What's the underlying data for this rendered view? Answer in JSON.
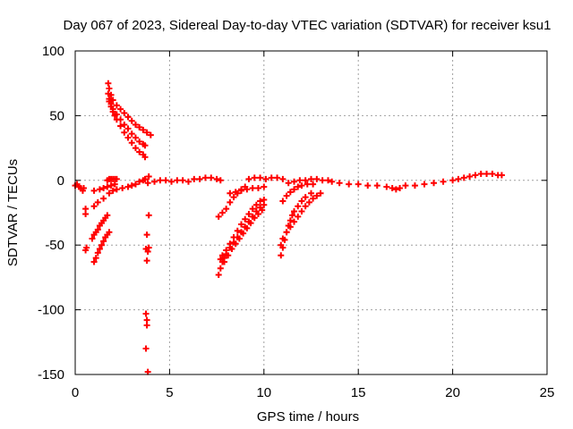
{
  "chart_data": {
    "type": "scatter",
    "title": "Day 067 of 2023, Sidereal Day-to-day VTEC variation (SDTVAR) for receiver ksu1",
    "xlabel": "GPS time / hours",
    "ylabel": "SDTVAR / TECUs",
    "xlim": [
      0,
      25
    ],
    "ylim": [
      -150,
      100
    ],
    "xticks": [
      "0",
      "5",
      "10",
      "15",
      "20",
      "25"
    ],
    "yticks": [
      "100",
      "50",
      "0",
      "-50",
      "-100",
      "-150"
    ],
    "grid": true,
    "marker": "+",
    "point_color": "#ff0000",
    "series": [
      {
        "name": "baseline-early",
        "points": [
          [
            0.0,
            -4
          ],
          [
            0.1,
            -3
          ],
          [
            0.2,
            -5
          ],
          [
            0.3,
            -6
          ],
          [
            0.4,
            -8
          ],
          [
            0.45,
            -6
          ]
        ]
      },
      {
        "name": "early-right",
        "points": [
          [
            1.0,
            -20
          ],
          [
            1.2,
            -17
          ],
          [
            1.5,
            -14
          ],
          [
            1.8,
            -10
          ],
          [
            2.0,
            -8
          ],
          [
            2.2,
            -7
          ],
          [
            2.5,
            -6
          ],
          [
            2.8,
            -5
          ],
          [
            3.0,
            -4
          ],
          [
            3.2,
            -3
          ],
          [
            3.4,
            -1
          ],
          [
            3.6,
            0
          ],
          [
            3.7,
            1
          ]
        ]
      },
      {
        "name": "early-band-lower",
        "points": [
          [
            1.0,
            -8
          ],
          [
            1.3,
            -7
          ],
          [
            1.5,
            -6
          ],
          [
            1.7,
            -5
          ],
          [
            1.9,
            -4
          ],
          [
            2.1,
            -3
          ]
        ]
      },
      {
        "name": "early-flat",
        "points": [
          [
            1.7,
            0
          ],
          [
            1.8,
            1
          ],
          [
            1.9,
            1
          ],
          [
            2.0,
            1
          ],
          [
            2.1,
            1
          ],
          [
            2.2,
            1
          ]
        ]
      },
      {
        "name": "early-rise-a",
        "points": [
          [
            0.9,
            -45
          ],
          [
            1.0,
            -42
          ],
          [
            1.1,
            -40
          ],
          [
            1.2,
            -38
          ],
          [
            1.3,
            -35
          ],
          [
            1.4,
            -33
          ],
          [
            1.5,
            -31
          ],
          [
            1.6,
            -29
          ],
          [
            1.7,
            -27
          ]
        ]
      },
      {
        "name": "early-rise-b",
        "points": [
          [
            1.0,
            -63
          ],
          [
            1.1,
            -60
          ],
          [
            1.2,
            -56
          ],
          [
            1.3,
            -53
          ],
          [
            1.4,
            -50
          ],
          [
            1.5,
            -47
          ],
          [
            1.6,
            -44
          ],
          [
            1.7,
            -42
          ],
          [
            1.8,
            -40
          ]
        ]
      },
      {
        "name": "early-isolated",
        "points": [
          [
            0.55,
            -54
          ],
          [
            0.6,
            -52
          ],
          [
            0.55,
            -22
          ],
          [
            0.55,
            -26
          ]
        ]
      },
      {
        "name": "arc-upper-1",
        "points": [
          [
            1.75,
            75
          ],
          [
            1.8,
            71
          ],
          [
            1.9,
            66
          ],
          [
            2.0,
            62
          ],
          [
            2.2,
            58
          ],
          [
            2.4,
            55
          ],
          [
            2.6,
            52
          ],
          [
            2.8,
            49
          ],
          [
            3.0,
            46
          ],
          [
            3.2,
            43
          ],
          [
            3.4,
            41
          ],
          [
            3.6,
            39
          ],
          [
            3.8,
            37
          ],
          [
            4.0,
            35
          ]
        ]
      },
      {
        "name": "arc-upper-2",
        "points": [
          [
            1.75,
            67
          ],
          [
            1.8,
            63
          ],
          [
            1.9,
            59
          ],
          [
            2.0,
            55
          ],
          [
            2.2,
            51
          ],
          [
            2.4,
            47
          ],
          [
            2.6,
            43
          ],
          [
            2.8,
            40
          ],
          [
            3.0,
            36
          ],
          [
            3.2,
            33
          ],
          [
            3.4,
            30
          ],
          [
            3.6,
            28
          ],
          [
            3.7,
            27
          ]
        ]
      },
      {
        "name": "arc-upper-3",
        "points": [
          [
            1.8,
            61
          ],
          [
            1.9,
            57
          ],
          [
            2.0,
            53
          ],
          [
            2.1,
            50
          ],
          [
            2.2,
            47
          ],
          [
            2.4,
            42
          ],
          [
            2.6,
            37
          ],
          [
            2.8,
            33
          ],
          [
            3.0,
            29
          ],
          [
            3.2,
            25
          ],
          [
            3.4,
            22
          ],
          [
            3.6,
            20
          ],
          [
            3.7,
            18
          ]
        ]
      },
      {
        "name": "vertical-near-4h",
        "points": [
          [
            3.85,
            -148
          ],
          [
            3.75,
            -130
          ],
          [
            3.8,
            -112
          ],
          [
            3.8,
            -108
          ],
          [
            3.75,
            -103
          ],
          [
            3.8,
            -62
          ],
          [
            3.85,
            -55
          ],
          [
            3.75,
            -53
          ],
          [
            3.9,
            -52
          ],
          [
            3.8,
            -42
          ],
          [
            3.9,
            -27
          ],
          [
            3.9,
            3
          ],
          [
            3.85,
            -2
          ]
        ]
      },
      {
        "name": "baseline-mid",
        "points": [
          [
            4.2,
            -1
          ],
          [
            4.5,
            0
          ],
          [
            4.8,
            0
          ],
          [
            5.1,
            -1
          ],
          [
            5.4,
            0
          ],
          [
            5.7,
            0
          ],
          [
            6.0,
            -1
          ],
          [
            6.3,
            1
          ],
          [
            6.6,
            1
          ],
          [
            6.9,
            2
          ],
          [
            7.2,
            2
          ],
          [
            7.5,
            1
          ],
          [
            7.7,
            0
          ]
        ]
      },
      {
        "name": "rise-7h-a",
        "points": [
          [
            7.6,
            -28
          ],
          [
            7.8,
            -25
          ],
          [
            8.0,
            -22
          ],
          [
            8.2,
            -17
          ],
          [
            8.4,
            -13
          ],
          [
            8.6,
            -10
          ],
          [
            8.8,
            -7
          ],
          [
            9.0,
            -5
          ]
        ]
      },
      {
        "name": "rise-7h-b",
        "points": [
          [
            7.6,
            -73
          ],
          [
            7.7,
            -68
          ],
          [
            7.8,
            -63
          ],
          [
            7.9,
            -60
          ],
          [
            8.0,
            -57
          ],
          [
            8.2,
            -52
          ],
          [
            8.4,
            -48
          ],
          [
            8.6,
            -44
          ],
          [
            8.8,
            -40
          ],
          [
            9.0,
            -36
          ],
          [
            9.2,
            -32
          ],
          [
            9.4,
            -28
          ],
          [
            9.6,
            -24
          ],
          [
            9.8,
            -21
          ],
          [
            10.0,
            -19
          ]
        ]
      },
      {
        "name": "rise-7h-c",
        "points": [
          [
            7.7,
            -61
          ],
          [
            7.8,
            -58
          ],
          [
            8.0,
            -54
          ],
          [
            8.2,
            -49
          ],
          [
            8.4,
            -44
          ],
          [
            8.6,
            -39
          ],
          [
            8.8,
            -34
          ],
          [
            9.0,
            -30
          ],
          [
            9.2,
            -26
          ],
          [
            9.4,
            -22
          ],
          [
            9.6,
            -19
          ],
          [
            9.8,
            -16
          ],
          [
            10.0,
            -15
          ]
        ]
      },
      {
        "name": "rise-7h-d",
        "points": [
          [
            7.9,
            -63
          ],
          [
            8.1,
            -58
          ],
          [
            8.3,
            -53
          ],
          [
            8.5,
            -49
          ],
          [
            8.7,
            -45
          ],
          [
            8.9,
            -41
          ],
          [
            9.1,
            -37
          ],
          [
            9.3,
            -33
          ],
          [
            9.5,
            -29
          ],
          [
            9.7,
            -26
          ],
          [
            9.9,
            -23
          ]
        ]
      },
      {
        "name": "band-9h",
        "points": [
          [
            8.2,
            -10
          ],
          [
            8.5,
            -9
          ],
          [
            8.8,
            -8
          ],
          [
            9.1,
            -7
          ],
          [
            9.4,
            -6
          ],
          [
            9.7,
            -6
          ],
          [
            10.0,
            -5
          ]
        ]
      },
      {
        "name": "baseline-10h",
        "points": [
          [
            9.2,
            1
          ],
          [
            9.5,
            2
          ],
          [
            9.8,
            2
          ],
          [
            10.1,
            1
          ],
          [
            10.4,
            2
          ],
          [
            10.7,
            2
          ],
          [
            11.0,
            1
          ]
        ]
      },
      {
        "name": "rise-11h-a",
        "points": [
          [
            10.9,
            -58
          ],
          [
            11.0,
            -52
          ],
          [
            11.1,
            -46
          ],
          [
            11.2,
            -40
          ],
          [
            11.3,
            -35
          ],
          [
            11.4,
            -31
          ],
          [
            11.5,
            -27
          ],
          [
            11.6,
            -24
          ],
          [
            11.8,
            -20
          ],
          [
            12.0,
            -16
          ],
          [
            12.2,
            -13
          ],
          [
            12.5,
            -10
          ]
        ]
      },
      {
        "name": "rise-11h-b",
        "points": [
          [
            10.9,
            -50
          ],
          [
            11.0,
            -45
          ],
          [
            11.2,
            -40
          ],
          [
            11.4,
            -36
          ],
          [
            11.6,
            -32
          ],
          [
            11.8,
            -28
          ],
          [
            12.0,
            -24
          ],
          [
            12.2,
            -20
          ],
          [
            12.4,
            -17
          ],
          [
            12.6,
            -14
          ],
          [
            12.8,
            -12
          ],
          [
            13.0,
            -10
          ]
        ]
      },
      {
        "name": "rise-11h-c",
        "points": [
          [
            11.0,
            -16
          ],
          [
            11.2,
            -12
          ],
          [
            11.4,
            -9
          ],
          [
            11.6,
            -7
          ],
          [
            11.8,
            -5
          ],
          [
            12.0,
            -4
          ],
          [
            12.3,
            -3
          ],
          [
            12.6,
            -3
          ]
        ]
      },
      {
        "name": "rise-11h-d",
        "points": [
          [
            11.3,
            -2
          ],
          [
            11.6,
            -1
          ],
          [
            11.9,
            0
          ],
          [
            12.2,
            0
          ],
          [
            12.5,
            1
          ],
          [
            12.8,
            1
          ],
          [
            13.1,
            0
          ],
          [
            13.4,
            0
          ]
        ]
      },
      {
        "name": "baseline-late",
        "points": [
          [
            13.6,
            -1
          ],
          [
            14.0,
            -2
          ],
          [
            14.5,
            -3
          ],
          [
            15.0,
            -3
          ],
          [
            15.5,
            -4
          ],
          [
            16.0,
            -4
          ],
          [
            16.5,
            -5
          ],
          [
            16.8,
            -6
          ],
          [
            17.0,
            -7
          ],
          [
            17.2,
            -6
          ],
          [
            17.5,
            -4
          ],
          [
            18.0,
            -4
          ],
          [
            18.5,
            -3
          ],
          [
            19.0,
            -2
          ],
          [
            19.5,
            -1
          ],
          [
            20.0,
            0
          ],
          [
            20.3,
            1
          ],
          [
            20.6,
            2
          ],
          [
            20.9,
            3
          ],
          [
            21.2,
            4
          ],
          [
            21.5,
            5
          ],
          [
            21.8,
            5
          ],
          [
            22.1,
            5
          ],
          [
            22.4,
            4
          ],
          [
            22.6,
            4
          ]
        ]
      }
    ]
  }
}
